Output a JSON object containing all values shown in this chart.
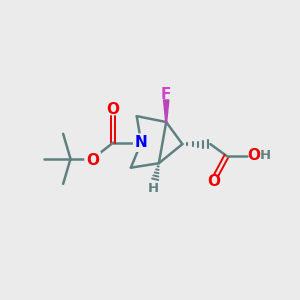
{
  "bg_color": "#ebebeb",
  "bond_color": "#5f8080",
  "bond_lw": 1.8,
  "atom_colors": {
    "N": "#0000ee",
    "O": "#ee0000",
    "F": "#cc44cc",
    "H": "#5f8080",
    "C": "#000000"
  },
  "font_size": 10.5,
  "fig_size": [
    3.0,
    3.0
  ],
  "dpi": 100,
  "xlim": [
    0,
    10
  ],
  "ylim": [
    0,
    10
  ]
}
